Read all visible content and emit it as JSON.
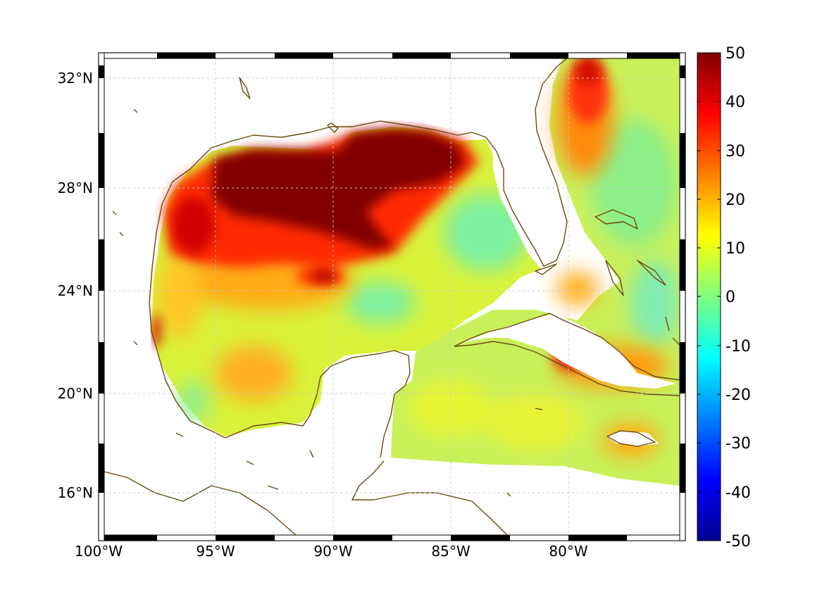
{
  "map": {
    "lat_labels": [
      "32°N",
      "28°N",
      "24°N",
      "20°N",
      "16°N"
    ],
    "lon_labels": [
      "100°W",
      "95°W",
      "90°W",
      "85°W",
      "80°W"
    ],
    "extent": {
      "lon_min": -100,
      "lon_max": -75,
      "lat_min": 14.3,
      "lat_max": 33
    },
    "coastline_color": "#6b4a12",
    "frame_style": "alternating black/white border"
  },
  "colorbar": {
    "ticks": [
      "50",
      "40",
      "30",
      "20",
      "10",
      "0",
      "-10",
      "-20",
      "-30",
      "-40",
      "-50"
    ],
    "range": [
      -50,
      50
    ],
    "colormap": "jet",
    "orientation": "vertical, right side"
  }
}
